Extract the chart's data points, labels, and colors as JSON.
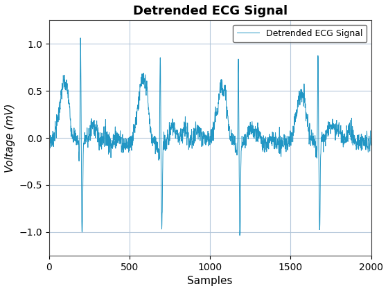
{
  "title": "Detrended ECG Signal",
  "xlabel": "Samples",
  "ylabel": "Voltage (mV)",
  "legend_label": "Detrended ECG Signal",
  "line_color": "#2196c4",
  "line_width": 0.7,
  "xlim": [
    0,
    2000
  ],
  "ylim": [
    -1.25,
    1.25
  ],
  "yticks": [
    -1.0,
    -0.5,
    0.0,
    0.5,
    1.0
  ],
  "xticks": [
    0,
    500,
    1000,
    1500,
    2000
  ],
  "n_samples": 2000,
  "background_color": "#ffffff",
  "grid_color": "#b0c4d8",
  "title_fontsize": 13,
  "label_fontsize": 11,
  "tick_fontsize": 10,
  "r_peaks": [
    195,
    690,
    1175,
    1670
  ],
  "r_amps": [
    1.07,
    0.98,
    0.9,
    0.9
  ],
  "s_depths": [
    -1.0,
    -0.88,
    -0.97,
    -0.95
  ],
  "p_bumps": [
    60,
    90,
    545,
    580,
    1040,
    1070,
    1530,
    1560
  ],
  "p_amps": [
    0.22,
    0.32,
    0.27,
    0.45,
    0.22,
    0.33,
    0.2,
    0.28
  ]
}
